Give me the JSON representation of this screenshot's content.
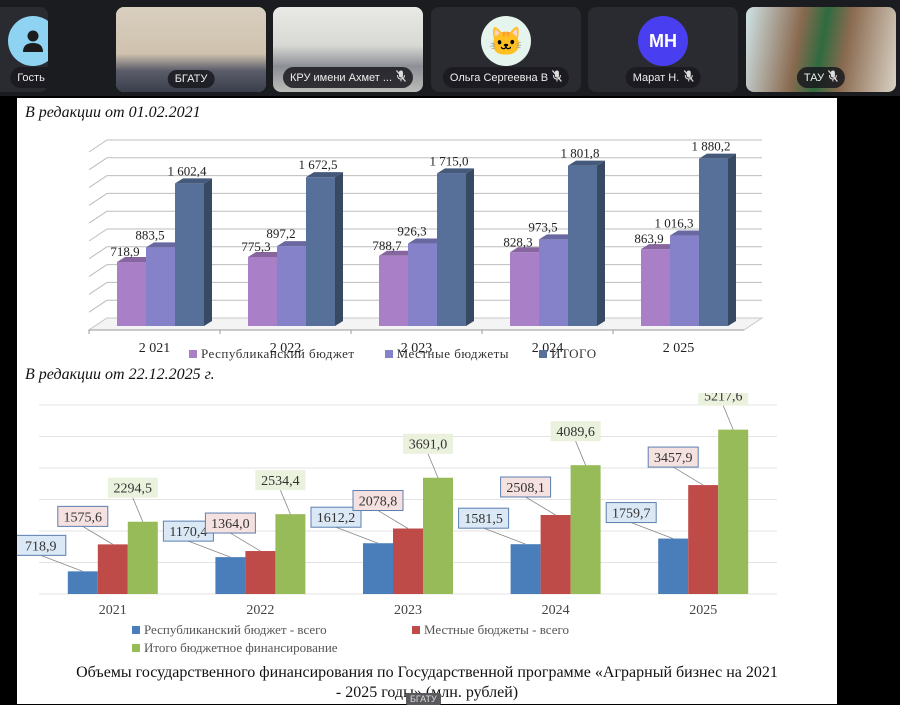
{
  "participants": [
    {
      "name": "Гость",
      "type": "avatar",
      "avatar_icon": "person-icon",
      "avatar_color": "#8fd3f2",
      "muted": true,
      "active": false
    },
    {
      "name": "БГАТУ",
      "type": "video",
      "muted": false,
      "active": true
    },
    {
      "name": "КРУ имени Ахмет ...",
      "type": "video",
      "muted": true,
      "active": false
    },
    {
      "name": "Ольга Сергеевна В",
      "type": "avatar",
      "avatar_icon": "cat-emoji-icon",
      "avatar_glyph": "🐱",
      "avatar_color": "#e6f4ee",
      "muted": true,
      "active": false
    },
    {
      "name": "Марат Н.",
      "type": "avatar",
      "avatar_initials": "МН",
      "avatar_color": "#4a3ff0",
      "muted": true,
      "active": false
    },
    {
      "name": "ТАУ",
      "type": "video",
      "muted": true,
      "active": false
    }
  ],
  "slide": {
    "section1_title": "В редакции от 01.02.2021",
    "section2_title": "В редакции от 22.12.2025 г.",
    "caption_line1": "Объемы государственного финансирования по Государственной программе «Аграрный бизнес на 2021",
    "caption_line2": "- 2025 годы» (млн. рублей)",
    "overlay_badge": "БГАТУ"
  },
  "chart_data": [
    {
      "type": "bar",
      "style": "3d-clustered",
      "title": "В редакции от 01.02.2021",
      "categories": [
        "2 021",
        "2 022",
        "2 023",
        "2 024",
        "2 025"
      ],
      "series": [
        {
          "name": "Республиканский бюджет",
          "color": "#a97fc7",
          "values": [
            718.9,
            775.3,
            788.7,
            828.3,
            863.9
          ],
          "labels": [
            "718,9",
            "775,3",
            "788,7",
            "828,3",
            "863,9"
          ]
        },
        {
          "name": "Местные бюджеты",
          "color": "#8582c9",
          "values": [
            883.5,
            897.2,
            926.3,
            973.5,
            1016.3
          ],
          "labels": [
            "883,5",
            "897,2",
            "926,3",
            "973,5",
            "1 016,3"
          ]
        },
        {
          "name": "ИТОГО",
          "color": "#56709a",
          "values": [
            1602.4,
            1672.5,
            1715.0,
            1801.8,
            1880.2
          ],
          "labels": [
            "1 602,4",
            "1 672,5",
            "1 715,0",
            "1 801,8",
            "1 880,2"
          ]
        }
      ],
      "ylim": [
        0,
        2000
      ],
      "grid": true,
      "legend": "bottom"
    },
    {
      "type": "bar",
      "title": "В редакции от 22.12.2025 г.",
      "categories": [
        "2021",
        "2022",
        "2023",
        "2024",
        "2025"
      ],
      "series": [
        {
          "name": "Республиканский бюджет - всего",
          "color": "#4a7ebb",
          "label_bg": "#dbe8f5",
          "values": [
            718.9,
            1170.4,
            1612.2,
            1581.5,
            1759.7
          ],
          "labels": [
            "718,9",
            "1170,4",
            "1612,2",
            "1581,5",
            "1759,7"
          ]
        },
        {
          "name": "Местные бюджеты - всего",
          "color": "#be4b48",
          "label_bg": "#f6e1e1",
          "values": [
            1575.6,
            1364.0,
            2078.8,
            2508.1,
            3457.9
          ],
          "labels": [
            "1575,6",
            "1364,0",
            "2078,8",
            "2508,1",
            "3457,9"
          ]
        },
        {
          "name": "Итого бюджетное финансирование",
          "color": "#98bb59",
          "label_bg": "#eaf1dd",
          "values": [
            2294.5,
            2534.4,
            3691.0,
            4089.6,
            5217.6
          ],
          "labels": [
            "2294,5",
            "2534,4",
            "3691,0",
            "4089,6",
            "5217,6"
          ]
        }
      ],
      "ylim": [
        0,
        6000
      ],
      "grid": true,
      "legend": "bottom"
    }
  ]
}
